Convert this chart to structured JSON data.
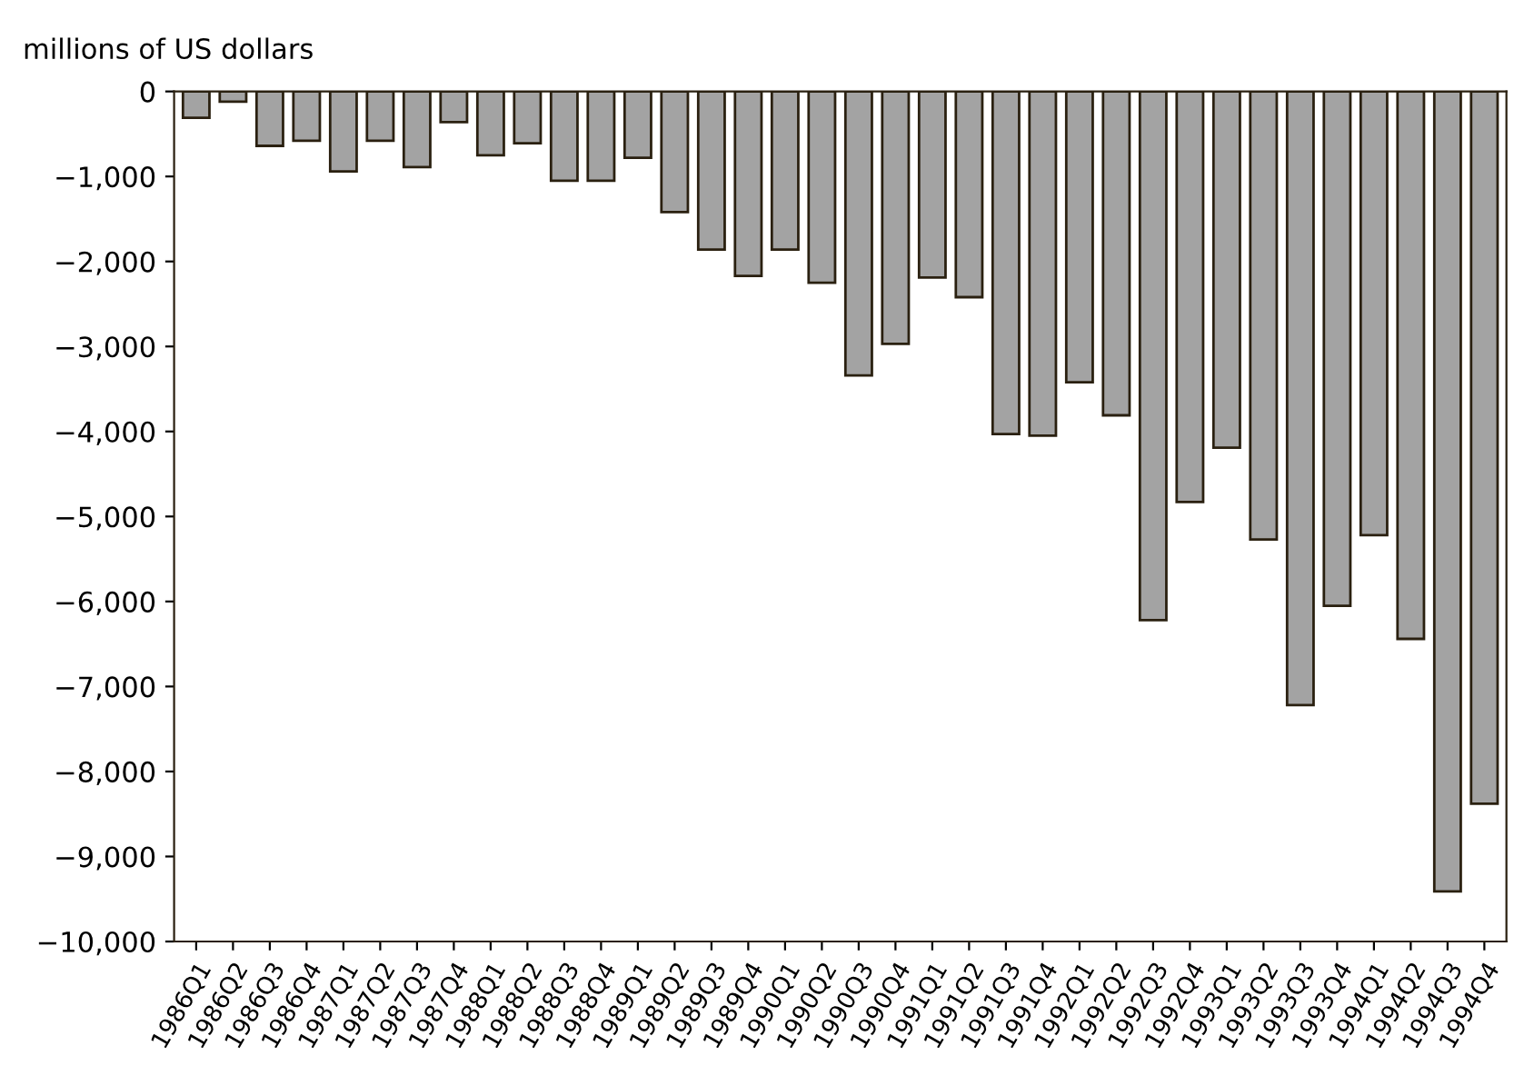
{
  "chart_data": {
    "type": "bar",
    "ylabel": "millions of US dollars",
    "categories": [
      "1986Q1",
      "1986Q2",
      "1986Q3",
      "1986Q4",
      "1987Q1",
      "1987Q2",
      "1987Q3",
      "1987Q4",
      "1988Q1",
      "1988Q2",
      "1988Q3",
      "1988Q4",
      "1989Q1",
      "1989Q2",
      "1989Q3",
      "1989Q4",
      "1990Q1",
      "1990Q2",
      "1990Q3",
      "1990Q4",
      "1991Q1",
      "1991Q2",
      "1991Q3",
      "1991Q4",
      "1992Q1",
      "1992Q2",
      "1992Q3",
      "1992Q4",
      "1993Q1",
      "1993Q2",
      "1993Q3",
      "1993Q4",
      "1994Q1",
      "1994Q2",
      "1994Q3",
      "1994Q4"
    ],
    "values": [
      -310,
      -120,
      -640,
      -580,
      -940,
      -580,
      -890,
      -360,
      -750,
      -610,
      -1050,
      -1050,
      -780,
      -1420,
      -1860,
      -2170,
      -1860,
      -2250,
      -3340,
      -2970,
      -2190,
      -2420,
      -4030,
      -4050,
      -3420,
      -3810,
      -6220,
      -4830,
      -4190,
      -5270,
      -7220,
      -6050,
      -5220,
      -6440,
      -9410,
      -8380
    ],
    "color": "#a3a3a3",
    "ylim": [
      -10000,
      0
    ],
    "yticks": [
      {
        "value": -10000,
        "label": "−10,000"
      },
      {
        "value": -9000,
        "label": "−9,000"
      },
      {
        "value": -8000,
        "label": "−8,000"
      },
      {
        "value": -7000,
        "label": "−7,000"
      },
      {
        "value": -6000,
        "label": "−6,000"
      },
      {
        "value": -5000,
        "label": "−5,000"
      },
      {
        "value": -4000,
        "label": "−4,000"
      },
      {
        "value": -3000,
        "label": "−3,000"
      },
      {
        "value": -2000,
        "label": "−2,000"
      },
      {
        "value": -1000,
        "label": "−1,000"
      },
      0
    ],
    "grid": false,
    "legend": false
  }
}
